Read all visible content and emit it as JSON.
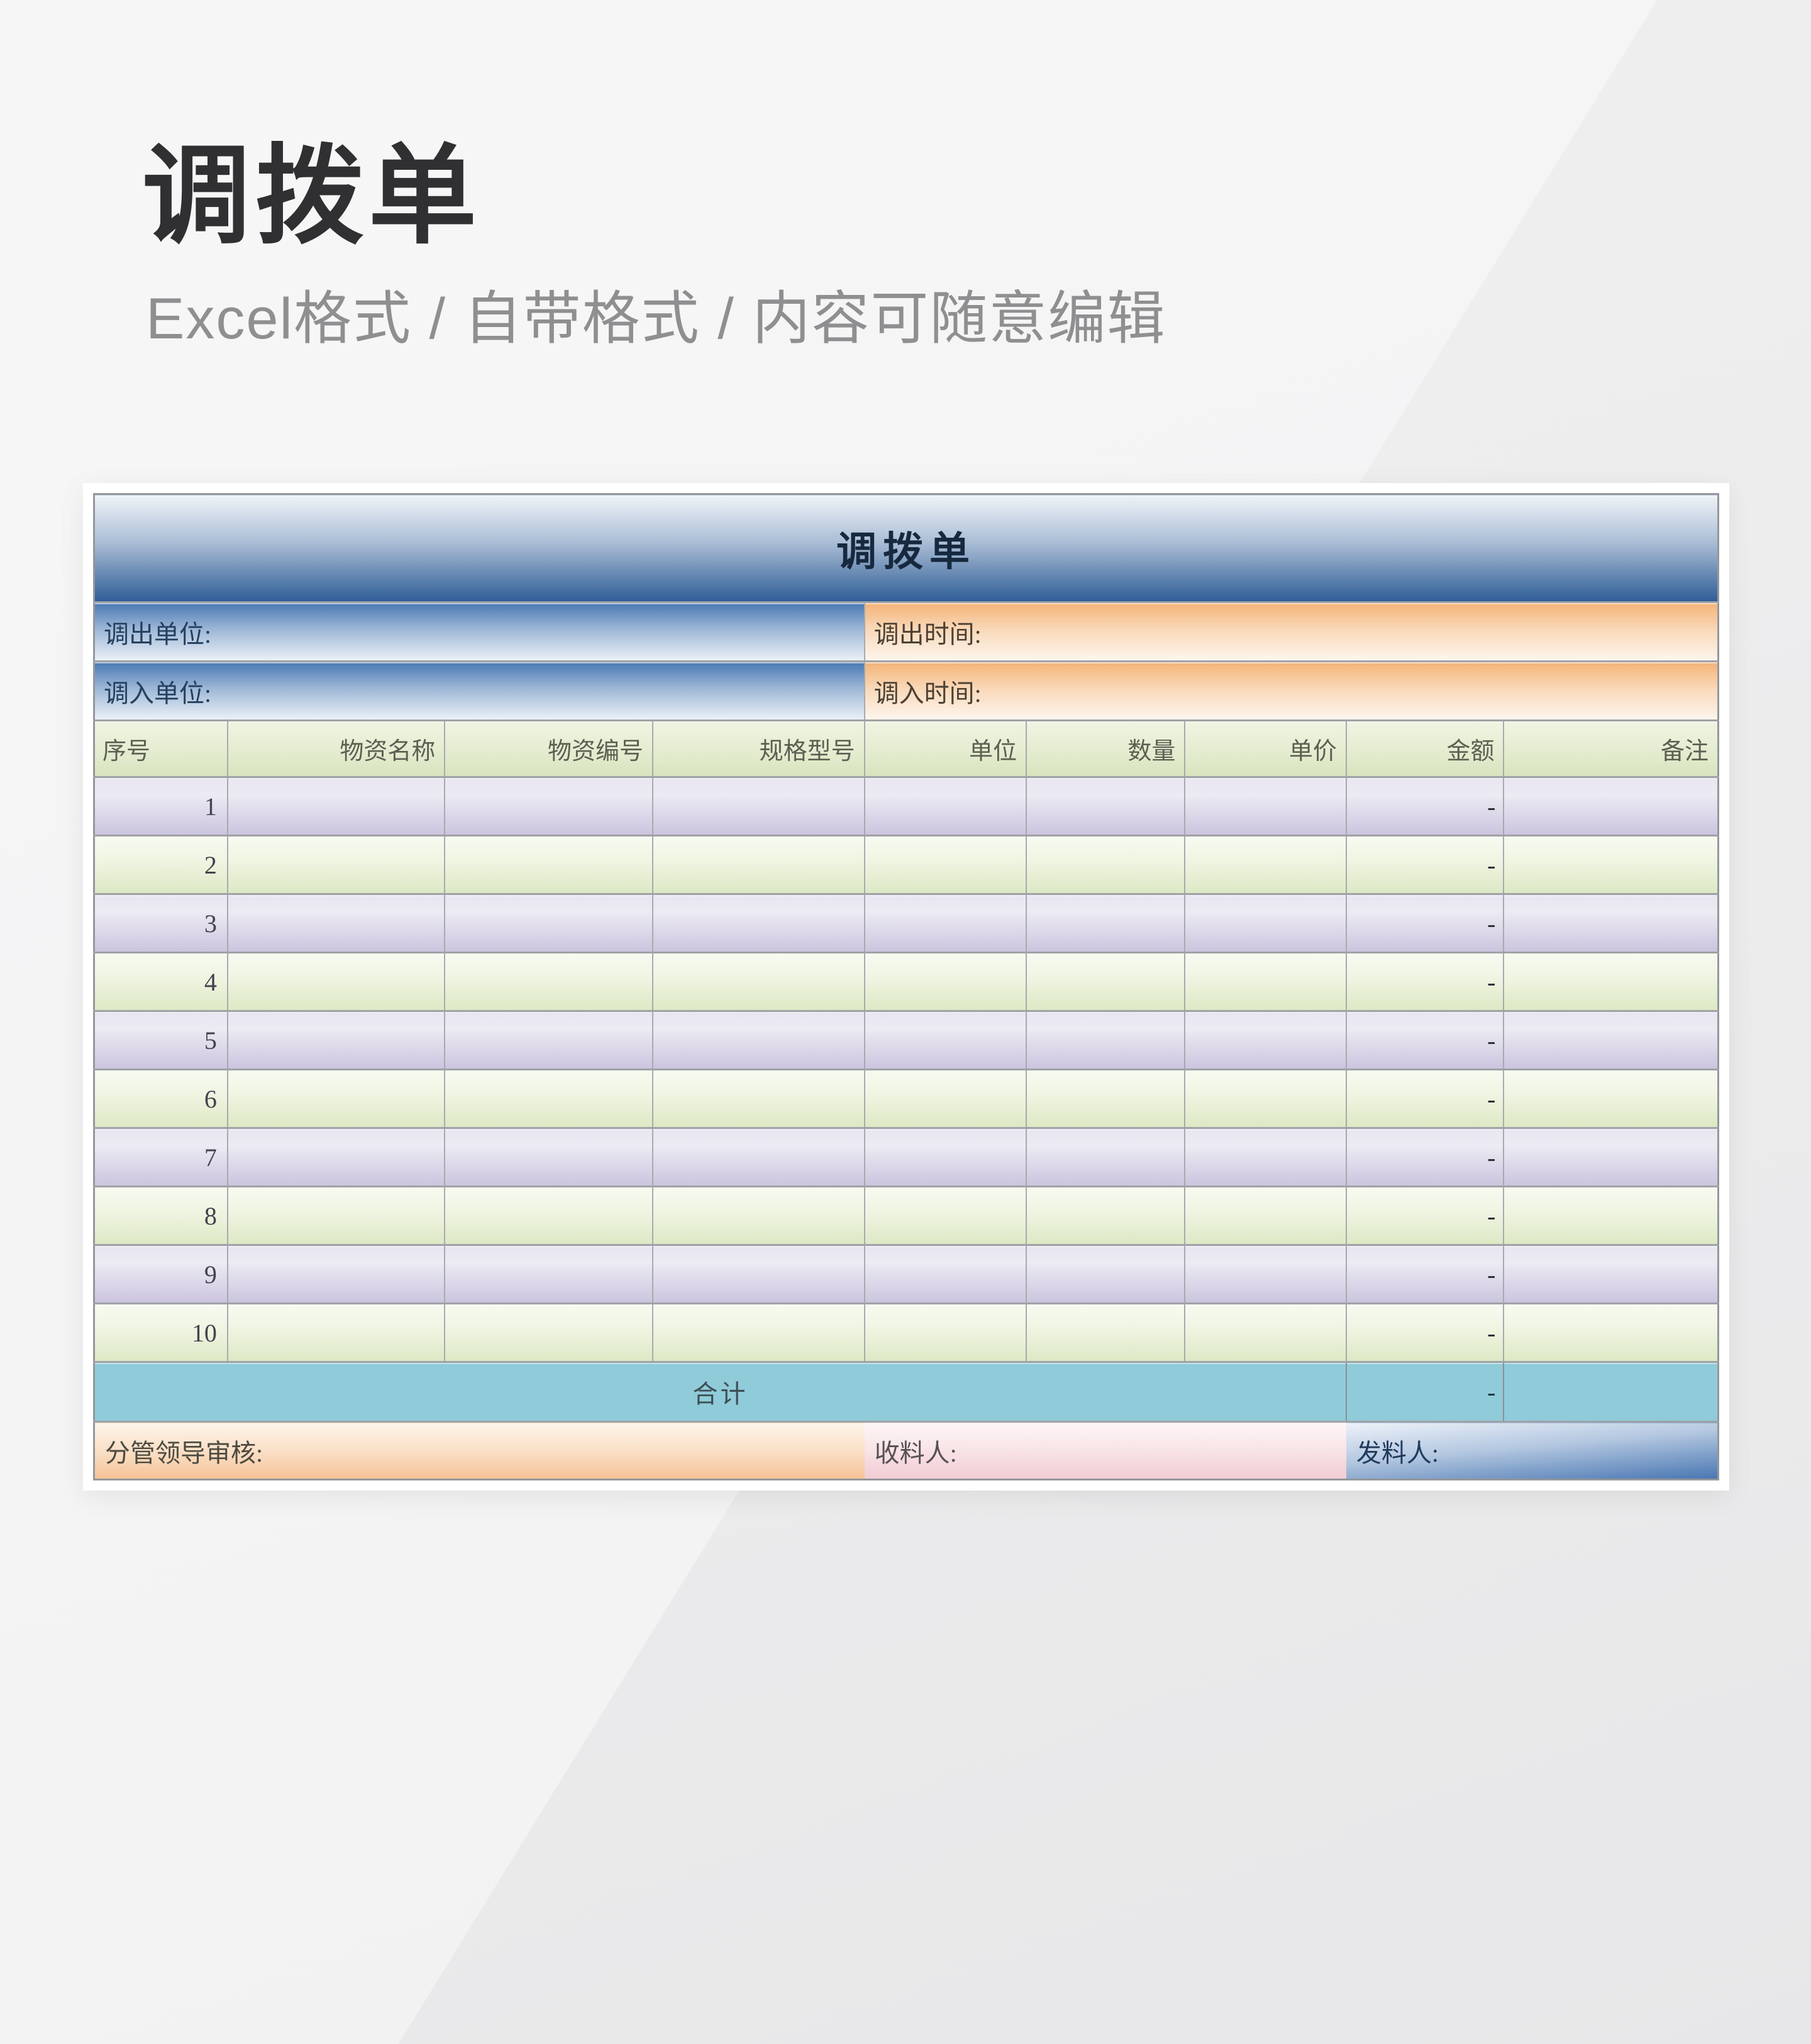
{
  "page": {
    "title": "调拨单",
    "subtitle": "Excel格式 / 自带格式 / 内容可随意编辑"
  },
  "form": {
    "title": "调拨单",
    "info": {
      "out_unit_label": "调出单位:",
      "out_time_label": "调出时间:",
      "in_unit_label": "调入单位:",
      "in_time_label": "调入时间:"
    },
    "columns": [
      "序号",
      "物资名称",
      "物资编号",
      "规格型号",
      "单位",
      "数量",
      "单价",
      "金额",
      "备注"
    ],
    "rows": [
      {
        "seq": "1",
        "amount": "-"
      },
      {
        "seq": "2",
        "amount": "-"
      },
      {
        "seq": "3",
        "amount": "-"
      },
      {
        "seq": "4",
        "amount": "-"
      },
      {
        "seq": "5",
        "amount": "-"
      },
      {
        "seq": "6",
        "amount": "-"
      },
      {
        "seq": "7",
        "amount": "-"
      },
      {
        "seq": "8",
        "amount": "-"
      },
      {
        "seq": "9",
        "amount": "-"
      },
      {
        "seq": "10",
        "amount": "-"
      }
    ],
    "total": {
      "label": "合计",
      "amount": "-"
    },
    "footer": {
      "audit_label": "分管领导审核:",
      "receiver_label": "收料人:",
      "issuer_label": "发料人:"
    }
  },
  "colors": {
    "page-bg": "#ececed",
    "page-title-ink": "#303032",
    "page-subtitle-ink": "#8f8f91",
    "band-top": "#eff3f8",
    "band-mid": "#a9bcd4",
    "band-deep": "#2e5d96",
    "band-ink": "#17293e",
    "unit-top": "#4a79b4",
    "unit-light": "#ecf1f8",
    "unit-ink": "#24405f",
    "time-top": "#f4b478",
    "time-light": "#fdf6ee",
    "time-ink": "#4d4033",
    "head-top": "#f0f4e2",
    "head-bottom": "#d8e3bd",
    "head-ink": "#5b6052",
    "lav-top": "#e9e6f1",
    "lav-bottom": "#cbc4de",
    "grn-top": "#f7faf0",
    "grn-bottom": "#dde8c4",
    "num-ink": "#41434e",
    "total-bg": "#90cbd9",
    "total-ink": "#3c4f54",
    "foot-orange-top": "#fdf4ea",
    "foot-orange-bottom": "#f5c296",
    "foot-orange-ink": "#4e4a40",
    "foot-pink-top": "#fdf6f6",
    "foot-pink-bottom": "#f1cbd3",
    "foot-pink-ink": "#585153",
    "foot-blue-top": "#edf2f9",
    "foot-blue-bottom": "#4976b2",
    "foot-blue-ink": "#213a5c",
    "grid": "#9fa2a6",
    "grid-v": "#a7aaad"
  }
}
